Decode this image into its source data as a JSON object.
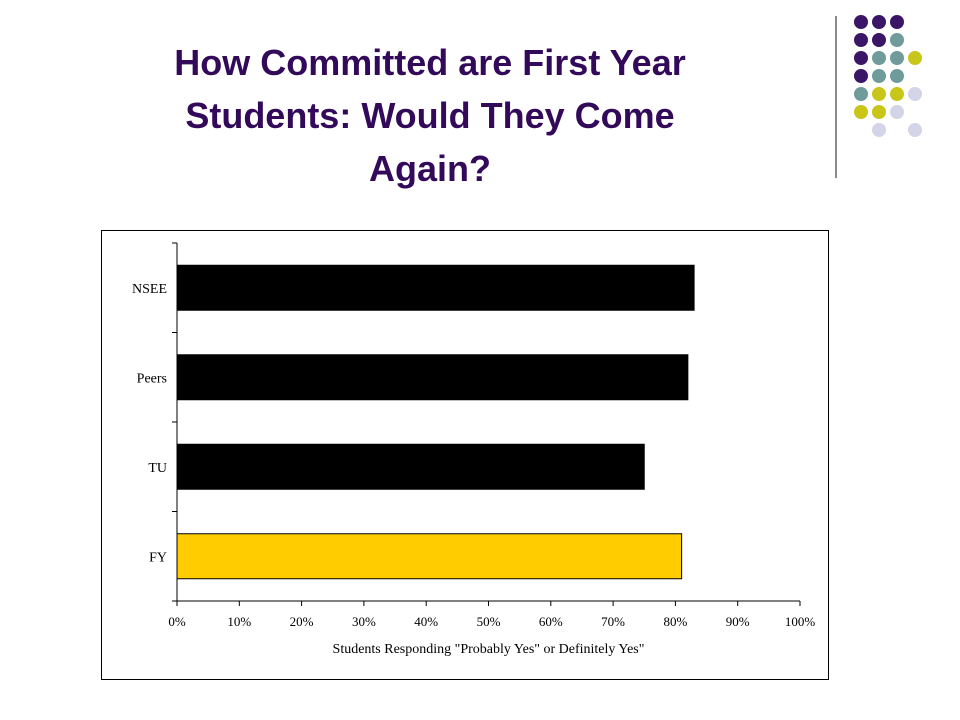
{
  "slide": {
    "title_lines": [
      "How Committed are First Year",
      "Students:  Would They Come",
      "Again?"
    ]
  },
  "decor": {
    "dot_colors": {
      "purple": "#3b1566",
      "teal": "#6f9b9b",
      "olive": "#c9c61a",
      "lavender": "#d4d4e8"
    }
  },
  "chart_data": {
    "type": "bar",
    "orientation": "horizontal",
    "title": "",
    "xlabel": "Students Responding \"Probably Yes\" or Definitely Yes\"",
    "ylabel": "",
    "categories": [
      "NSEE",
      "Peers",
      "TU",
      "FY"
    ],
    "values": [
      0.83,
      0.82,
      0.75,
      0.81
    ],
    "colors": [
      "#000000",
      "#000000",
      "#000000",
      "#ffcc00"
    ],
    "xlim": [
      0,
      1
    ],
    "xticks": [
      "0%",
      "10%",
      "20%",
      "30%",
      "40%",
      "50%",
      "60%",
      "70%",
      "80%",
      "90%",
      "100%"
    ],
    "grid": false,
    "legend": "none"
  }
}
